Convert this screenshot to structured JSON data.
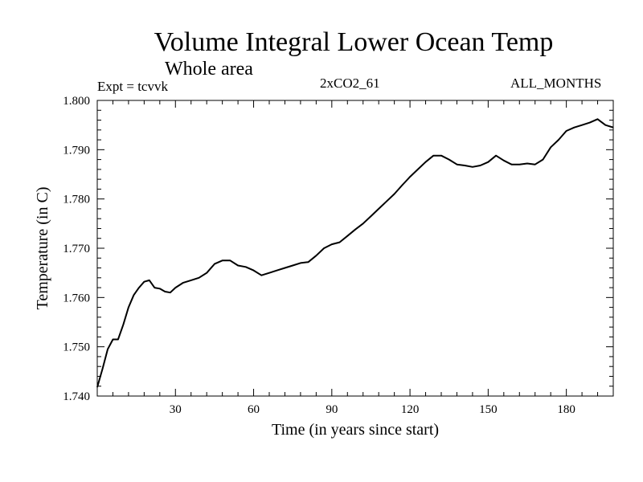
{
  "chart_data": {
    "type": "line",
    "title": "Volume Integral Lower Ocean Temp",
    "subtitle": "Whole area",
    "annotations": {
      "left": "Expt = tcvvk",
      "center": "2xCO2_61",
      "right": "ALL_MONTHS"
    },
    "xlabel": "Time (in years since start)",
    "ylabel": "Temperature (in C)",
    "xlim": [
      0,
      198
    ],
    "ylim": [
      1.74,
      1.8
    ],
    "x_ticks": [
      30,
      60,
      90,
      120,
      150,
      180
    ],
    "x_tick_labels": [
      "30",
      "60",
      "90",
      "120",
      "150",
      "180"
    ],
    "y_ticks": [
      1.74,
      1.75,
      1.76,
      1.77,
      1.78,
      1.79,
      1.8
    ],
    "y_tick_labels": [
      "1.740",
      "1.750",
      "1.760",
      "1.770",
      "1.780",
      "1.790",
      "1.800"
    ],
    "grid": false,
    "series": [
      {
        "x": [
          0,
          2,
          4,
          6,
          8,
          10,
          12,
          14,
          16,
          18,
          20,
          22,
          24,
          26,
          28,
          30,
          33,
          36,
          39,
          42,
          45,
          48,
          51,
          54,
          57,
          60,
          63,
          66,
          69,
          72,
          75,
          78,
          81,
          84,
          87,
          90,
          93,
          96,
          99,
          102,
          105,
          108,
          111,
          114,
          117,
          120,
          123,
          126,
          129,
          132,
          135,
          138,
          141,
          144,
          147,
          150,
          153,
          156,
          159,
          162,
          165,
          168,
          171,
          174,
          177,
          180,
          183,
          186,
          189,
          192,
          195,
          198
        ],
        "y": [
          1.7418,
          1.7455,
          1.7495,
          1.7515,
          1.7515,
          1.7545,
          1.758,
          1.7605,
          1.762,
          1.7632,
          1.7635,
          1.762,
          1.7618,
          1.7612,
          1.761,
          1.762,
          1.763,
          1.7635,
          1.764,
          1.765,
          1.7668,
          1.7675,
          1.7675,
          1.7665,
          1.7662,
          1.7655,
          1.7645,
          1.765,
          1.7655,
          1.766,
          1.7665,
          1.767,
          1.7672,
          1.7685,
          1.77,
          1.7708,
          1.7712,
          1.7725,
          1.7738,
          1.775,
          1.7765,
          1.778,
          1.7795,
          1.781,
          1.7828,
          1.7845,
          1.786,
          1.7875,
          1.7888,
          1.7888,
          1.788,
          1.787,
          1.7868,
          1.7865,
          1.7868,
          1.7875,
          1.7888,
          1.7878,
          1.787,
          1.787,
          1.7872,
          1.787,
          1.788,
          1.7905,
          1.792,
          1.7938,
          1.7945,
          1.795,
          1.7955,
          1.7962,
          1.795,
          1.7945
        ]
      }
    ]
  }
}
